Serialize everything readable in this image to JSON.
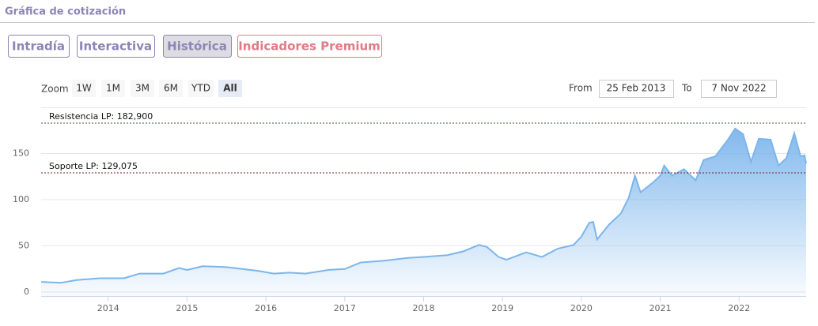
{
  "header": {
    "title": "Gráfica de cotización"
  },
  "tabs": [
    "Intradía",
    "Interactiva",
    "Histórica",
    "Indicadores Premium"
  ],
  "active_tab": 2,
  "range_selector": {
    "label": "Zoom",
    "buttons": [
      "1W",
      "1M",
      "3M",
      "6M",
      "YTD",
      "All"
    ],
    "selected": 5,
    "from_label": "From",
    "from": "25 Feb 2013",
    "to_label": "To",
    "to": "7 Nov 2022"
  },
  "chart_data": {
    "type": "area",
    "color": "#7cb5ec",
    "x": [
      2013.15,
      2013.4,
      2013.6,
      2013.9,
      2014.2,
      2014.4,
      2014.7,
      2014.9,
      2015.0,
      2015.2,
      2015.5,
      2015.7,
      2015.9,
      2016.1,
      2016.3,
      2016.5,
      2016.8,
      2017.0,
      2017.2,
      2017.5,
      2017.8,
      2018.0,
      2018.3,
      2018.5,
      2018.7,
      2018.8,
      2018.95,
      2019.05,
      2019.3,
      2019.5,
      2019.7,
      2019.9,
      2020.0,
      2020.1,
      2020.15,
      2020.2,
      2020.35,
      2020.5,
      2020.6,
      2020.68,
      2020.75,
      2020.9,
      2021.0,
      2021.05,
      2021.15,
      2021.3,
      2021.45,
      2021.55,
      2021.7,
      2021.85,
      2021.95,
      2022.05,
      2022.15,
      2022.25,
      2022.4,
      2022.5,
      2022.6,
      2022.7,
      2022.78,
      2022.83,
      2022.85
    ],
    "values": [
      11,
      10,
      13,
      15,
      15,
      20,
      20,
      26,
      24,
      28,
      27,
      25,
      23,
      20,
      21,
      20,
      24,
      25,
      32,
      34,
      37,
      38,
      40,
      44,
      51,
      49,
      38,
      35,
      43,
      38,
      47,
      51,
      60,
      75,
      76,
      57,
      73,
      85,
      102,
      126,
      108,
      118,
      126,
      137,
      126,
      133,
      121,
      143,
      147,
      164,
      177,
      171,
      141,
      166,
      165,
      137,
      145,
      172,
      147,
      148,
      139
    ],
    "xlim": [
      2013.15,
      2022.85
    ],
    "xticks": [
      2014,
      2015,
      2016,
      2017,
      2018,
      2019,
      2020,
      2021,
      2022
    ],
    "ylim": [
      0,
      200
    ],
    "yticks": [
      0,
      50,
      100,
      150
    ],
    "grid": true,
    "plot_lines": [
      {
        "label": "Resistencia LP: 182,900",
        "value": 182.9,
        "color": "#2f5a3a"
      },
      {
        "label": "Soporte LP: 129,075",
        "value": 129.075,
        "color": "#7a1f2b"
      }
    ]
  }
}
